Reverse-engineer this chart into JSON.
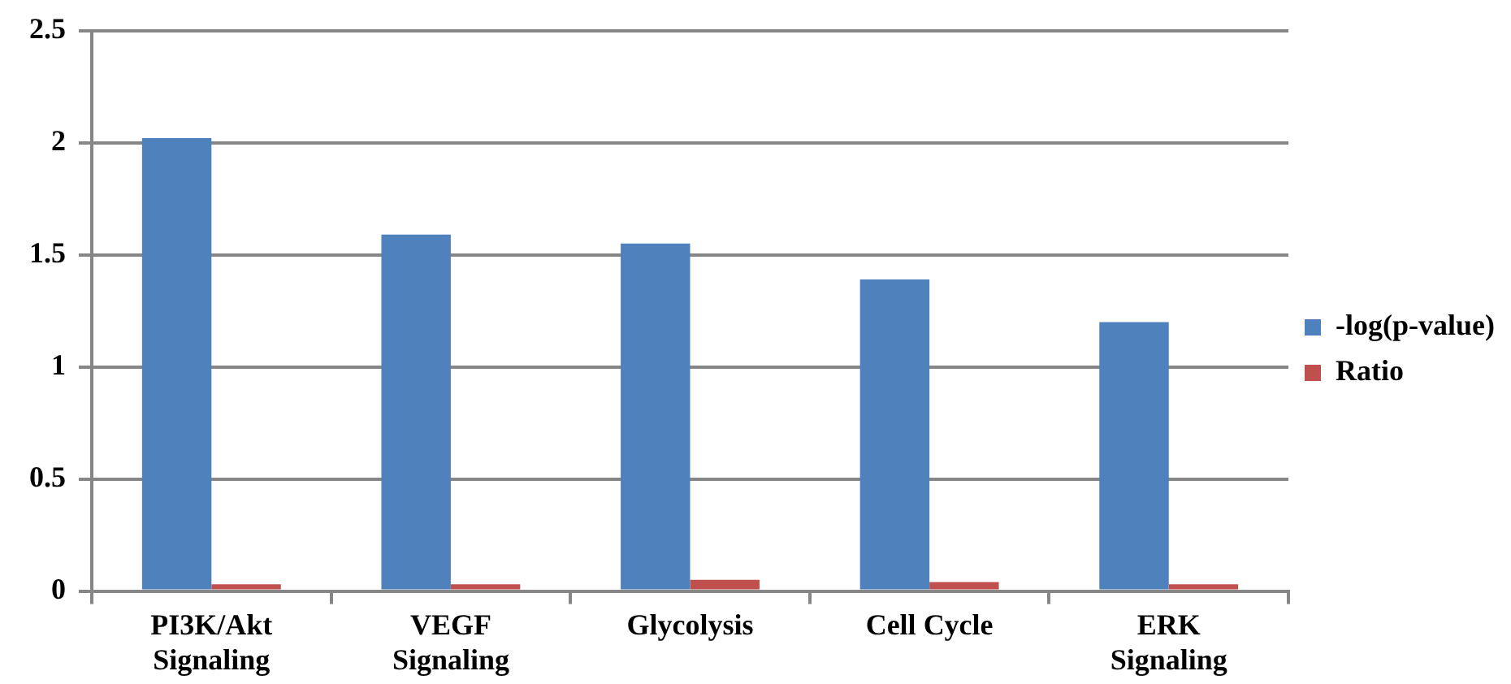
{
  "chart_data": {
    "type": "bar",
    "categories": [
      "PI3K/Akt\nSignaling",
      "VEGF\nSignaling",
      "Glycolysis",
      "Cell Cycle",
      "ERK\nSignaling"
    ],
    "series": [
      {
        "name": "-log(p-value)",
        "color": "#4f81bd",
        "values": [
          2.02,
          1.59,
          1.55,
          1.39,
          1.2
        ]
      },
      {
        "name": "Ratio",
        "color": "#c0504d",
        "values": [
          0.03,
          0.03,
          0.05,
          0.04,
          0.03
        ]
      }
    ],
    "ylim": [
      0,
      2.5
    ],
    "yticks": [
      0,
      0.5,
      1,
      1.5,
      2,
      2.5
    ],
    "grid": "y",
    "legend": "right"
  }
}
